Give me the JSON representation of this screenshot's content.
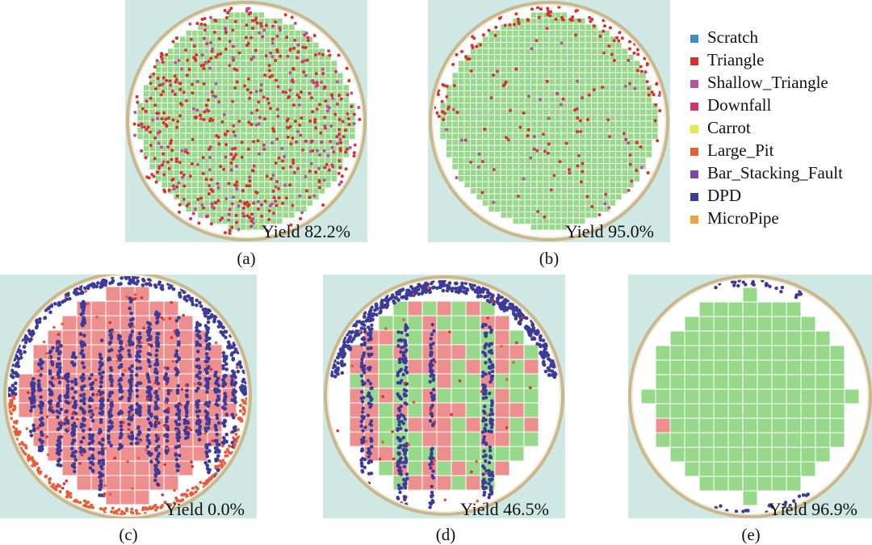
{
  "legend": {
    "items": [
      {
        "label": "Scratch",
        "color": "#3a8fc6"
      },
      {
        "label": "Triangle",
        "color": "#d8302a"
      },
      {
        "label": "Shallow_Triangle",
        "color": "#b452a8"
      },
      {
        "label": "Downfall",
        "color": "#d6336e"
      },
      {
        "label": "Carrot",
        "color": "#e6e84a"
      },
      {
        "label": "Large_Pit",
        "color": "#e85c3a"
      },
      {
        "label": "Bar_Stacking_Fault",
        "color": "#7b46a6"
      },
      {
        "label": "DPD",
        "color": "#3c3b99"
      },
      {
        "label": "MicroPipe",
        "color": "#f0a040"
      }
    ]
  },
  "colors": {
    "panel_background": "#cfe8e4",
    "wafer_ring": "#c9b88d",
    "good_die": "#97d88b",
    "bad_die": "#ee8f8f",
    "grid_line": "#ffffff"
  },
  "panels": [
    {
      "id": "a",
      "caption": "(a)",
      "yield_text": "Yield 82.2%",
      "yield_percent": 82.2
    },
    {
      "id": "b",
      "caption": "(b)",
      "yield_text": "Yield 95.0%",
      "yield_percent": 95.0
    },
    {
      "id": "c",
      "caption": "(c)",
      "yield_text": "Yield 0.0%",
      "yield_percent": 0.0
    },
    {
      "id": "d",
      "caption": "(d)",
      "yield_text": "Yield 46.5%",
      "yield_percent": 46.5
    },
    {
      "id": "e",
      "caption": "(e)",
      "yield_text": "Yield 96.9%",
      "yield_percent": 96.9
    }
  ]
}
